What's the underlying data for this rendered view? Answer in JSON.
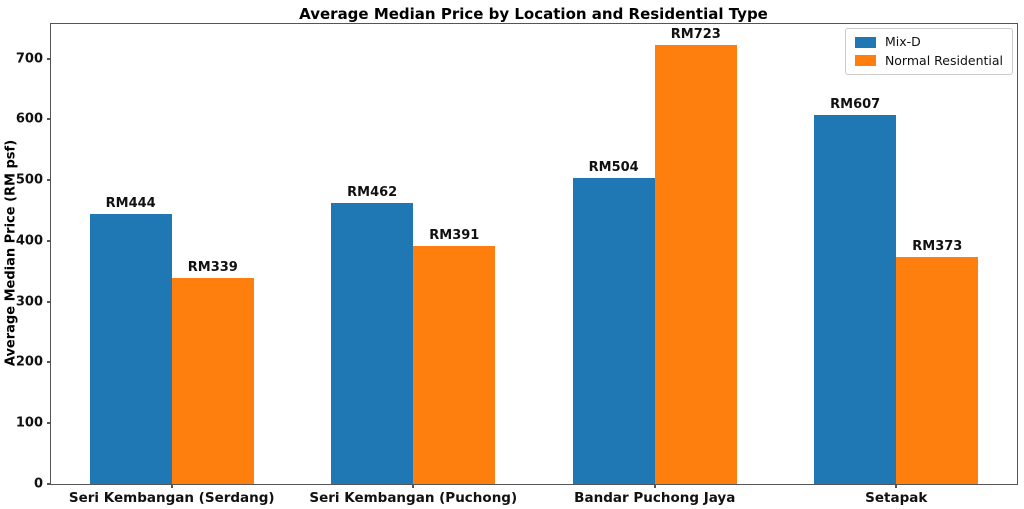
{
  "chart_data": {
    "type": "bar",
    "title": "Average Median Price by Location and Residential Type",
    "ylabel": "Average Median Price (RM psf)",
    "xlabel": "",
    "categories": [
      "Seri Kembangan (Serdang)",
      "Seri Kembangan (Puchong)",
      "Bandar Puchong Jaya",
      "Setapak"
    ],
    "series": [
      {
        "name": "Mix-D",
        "color": "#1f77b4",
        "values": [
          444,
          462,
          504,
          607
        ],
        "value_labels": [
          "RM444",
          "RM462",
          "RM504",
          "RM607"
        ]
      },
      {
        "name": "Normal Residential",
        "color": "#ff7f0e",
        "values": [
          339,
          391,
          723,
          373
        ],
        "value_labels": [
          "RM339",
          "RM391",
          "RM723",
          "RM373"
        ]
      }
    ],
    "y_ticks": [
      "0",
      "100",
      "200",
      "300",
      "400",
      "500",
      "600",
      "700"
    ],
    "y_tick_values": [
      0,
      100,
      200,
      300,
      400,
      500,
      600,
      700
    ],
    "ylim": [
      0,
      757
    ],
    "legend_position": "upper right",
    "grid": false
  }
}
